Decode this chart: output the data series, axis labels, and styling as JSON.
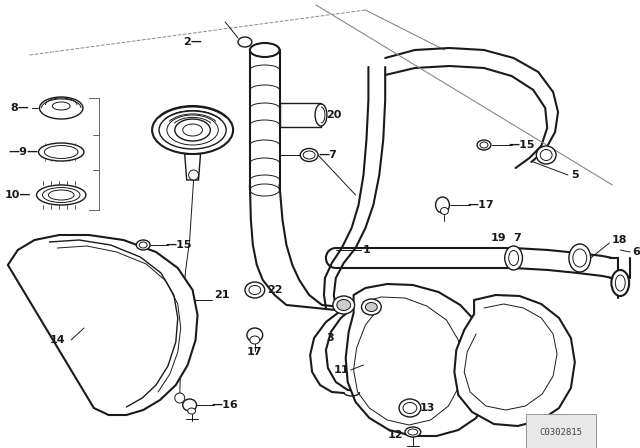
{
  "line_color": "#1a1a1a",
  "watermark": "C0302815",
  "bg": "white"
}
